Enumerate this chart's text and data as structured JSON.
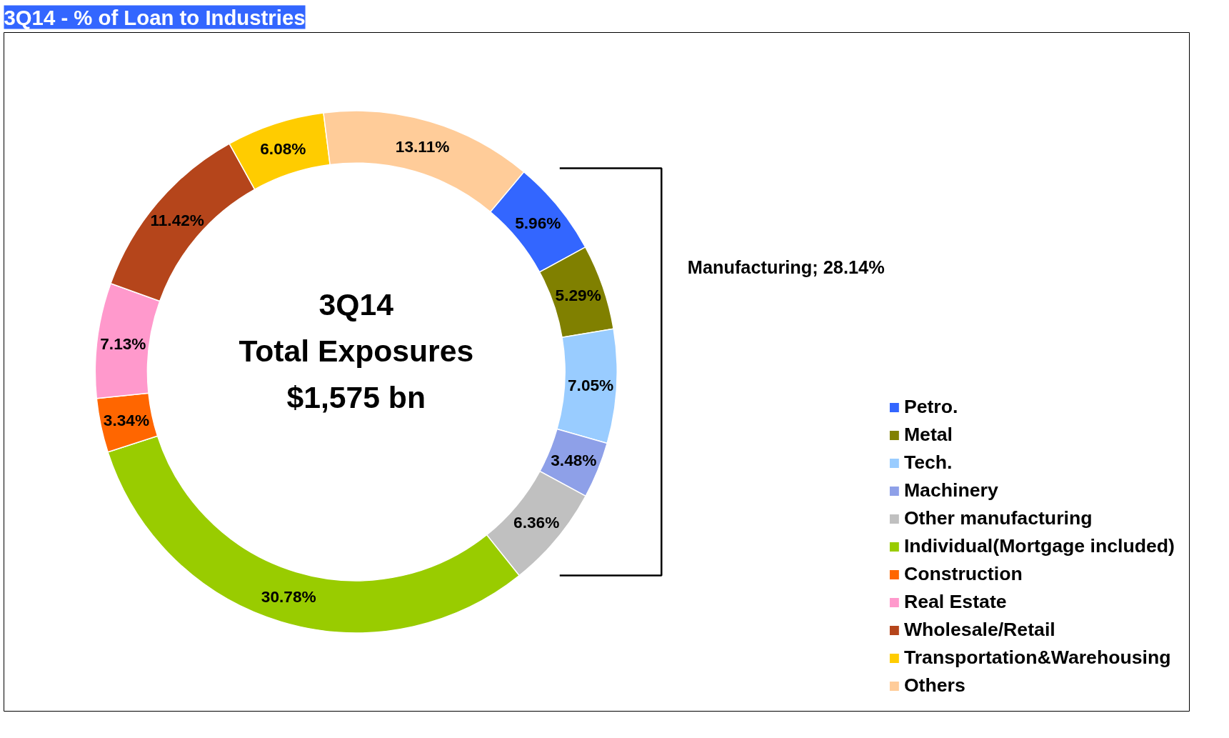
{
  "chart_data": {
    "type": "donut",
    "title": "3Q14 - % of Loan to Industries",
    "categories": [
      "Petro.",
      "Metal",
      "Tech.",
      "Machinery",
      "Other manufacturing",
      "Individual(Mortgage included)",
      "Construction",
      "Real Estate",
      "Wholesale/Retail",
      "Transportation&Warehousing",
      "Others"
    ],
    "values": [
      5.96,
      5.29,
      7.05,
      3.48,
      6.36,
      30.78,
      3.34,
      7.13,
      11.42,
      6.08,
      13.11
    ],
    "colors": [
      "#3366ff",
      "#808000",
      "#99ccff",
      "#8ea0e8",
      "#c0c0c0",
      "#99cc00",
      "#ff6600",
      "#ff99cc",
      "#b5451b",
      "#ffcc00",
      "#ffcc99"
    ],
    "value_labels": [
      "5.96%",
      "5.29%",
      "7.05%",
      "3.48%",
      "6.36%",
      "30.78%",
      "3.34%",
      "7.13%",
      "11.42%",
      "6.08%",
      "13.11%"
    ],
    "legend": "bottom right",
    "annotations": [
      "3Q14\nTotal Exposures\n$1,575 bn",
      "Manufacturing; 28.14%"
    ]
  }
}
